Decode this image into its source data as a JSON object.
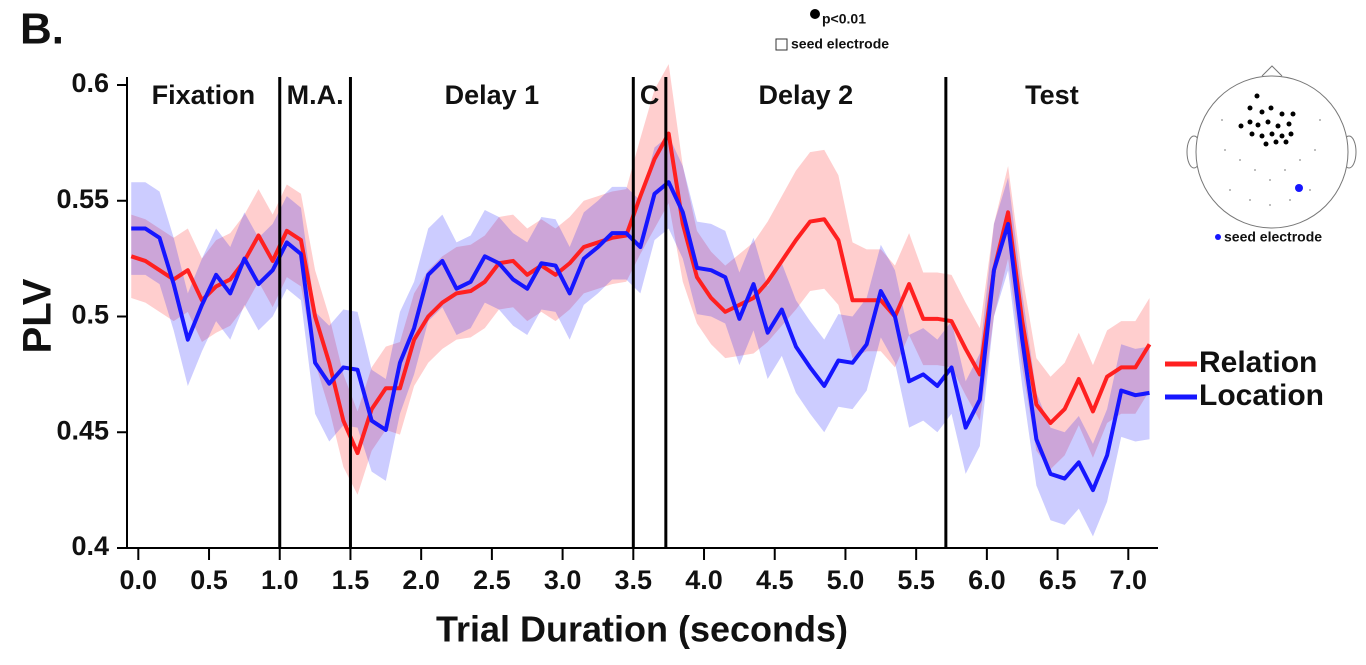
{
  "chart_data": {
    "type": "line",
    "panel_label": "B.",
    "x_label": "Trial Duration (seconds)",
    "y_label": "PLV",
    "xlim": [
      -0.08,
      7.21
    ],
    "ylim": [
      0.4,
      0.6
    ],
    "xticks": [
      {
        "value": 0,
        "label": "0.0"
      },
      0.5,
      {
        "value": 1,
        "label": "1.0"
      },
      1.5,
      {
        "value": 2,
        "label": "2.0"
      },
      2.5,
      {
        "value": 3,
        "label": "3.0"
      },
      3.5,
      {
        "value": 4,
        "label": "4.0"
      },
      4.5,
      {
        "value": 5,
        "label": "5.0"
      },
      5.5,
      {
        "value": 6,
        "label": "6.0"
      },
      6.5,
      {
        "value": 7,
        "label": "7.0"
      }
    ],
    "yticks": [
      0.4,
      0.45,
      0.5,
      0.55,
      0.6
    ],
    "grid": false,
    "vlines": [
      1.0,
      1.5,
      3.5,
      3.73,
      5.71
    ],
    "phases": [
      "Fixation",
      "M.A.",
      "Delay 1",
      "C",
      "Delay 2",
      "Test"
    ],
    "legend_position": "right",
    "annotations": {
      "significance": "p<0.01",
      "seed_box": "seed electrode",
      "seed_inset": "seed electrode"
    },
    "x": [
      -0.05,
      0.05,
      0.15,
      0.25,
      0.35,
      0.45,
      0.55,
      0.65,
      0.75,
      0.85,
      0.95,
      1.05,
      1.15,
      1.25,
      1.35,
      1.45,
      1.55,
      1.65,
      1.75,
      1.85,
      1.95,
      2.05,
      2.15,
      2.25,
      2.35,
      2.45,
      2.55,
      2.65,
      2.75,
      2.85,
      2.95,
      3.05,
      3.15,
      3.25,
      3.35,
      3.45,
      3.55,
      3.65,
      3.75,
      3.85,
      3.95,
      4.05,
      4.15,
      4.25,
      4.35,
      4.45,
      4.55,
      4.65,
      4.75,
      4.85,
      4.95,
      5.05,
      5.15,
      5.25,
      5.35,
      5.45,
      5.55,
      5.65,
      5.75,
      5.85,
      5.95,
      6.05,
      6.15,
      6.25,
      6.35,
      6.45,
      6.55,
      6.65,
      6.75,
      6.85,
      6.95,
      7.05,
      7.15
    ],
    "series": [
      {
        "name": "Relation",
        "color": "#ff2020",
        "values": [
          0.526,
          0.524,
          0.52,
          0.516,
          0.52,
          0.507,
          0.513,
          0.516,
          0.524,
          0.535,
          0.524,
          0.537,
          0.533,
          0.5,
          0.48,
          0.455,
          0.441,
          0.46,
          0.469,
          0.469,
          0.49,
          0.5,
          0.506,
          0.51,
          0.511,
          0.515,
          0.523,
          0.524,
          0.518,
          0.522,
          0.518,
          0.523,
          0.53,
          0.532,
          0.534,
          0.535,
          0.552,
          0.568,
          0.579,
          0.54,
          0.517,
          0.508,
          0.502,
          0.505,
          0.508,
          0.515,
          0.524,
          0.533,
          0.541,
          0.542,
          0.533,
          0.507,
          0.507,
          0.507,
          0.5,
          0.514,
          0.499,
          0.499,
          0.498,
          0.486,
          0.475,
          0.52,
          0.545,
          0.498,
          0.462,
          0.454,
          0.46,
          0.473,
          0.459,
          0.474,
          0.478,
          0.478,
          0.488
        ],
        "errors": [
          0.018,
          0.018,
          0.018,
          0.018,
          0.018,
          0.018,
          0.02,
          0.02,
          0.02,
          0.02,
          0.02,
          0.02,
          0.02,
          0.02,
          0.02,
          0.02,
          0.018,
          0.018,
          0.018,
          0.02,
          0.02,
          0.02,
          0.02,
          0.02,
          0.02,
          0.02,
          0.02,
          0.02,
          0.02,
          0.02,
          0.02,
          0.02,
          0.02,
          0.02,
          0.02,
          0.02,
          0.025,
          0.03,
          0.03,
          0.025,
          0.02,
          0.02,
          0.02,
          0.022,
          0.024,
          0.026,
          0.028,
          0.03,
          0.03,
          0.03,
          0.028,
          0.025,
          0.022,
          0.022,
          0.022,
          0.022,
          0.02,
          0.02,
          0.02,
          0.02,
          0.02,
          0.02,
          0.02,
          0.02,
          0.02,
          0.02,
          0.02,
          0.02,
          0.02,
          0.02,
          0.02,
          0.02,
          0.02
        ]
      },
      {
        "name": "Location",
        "color": "#1616ff",
        "values": [
          0.538,
          0.538,
          0.534,
          0.514,
          0.49,
          0.505,
          0.518,
          0.51,
          0.525,
          0.514,
          0.52,
          0.532,
          0.527,
          0.48,
          0.471,
          0.478,
          0.477,
          0.455,
          0.451,
          0.48,
          0.495,
          0.518,
          0.524,
          0.512,
          0.515,
          0.526,
          0.523,
          0.516,
          0.512,
          0.523,
          0.522,
          0.51,
          0.525,
          0.53,
          0.536,
          0.536,
          0.53,
          0.553,
          0.558,
          0.545,
          0.521,
          0.52,
          0.517,
          0.499,
          0.514,
          0.493,
          0.503,
          0.487,
          0.478,
          0.47,
          0.481,
          0.48,
          0.488,
          0.511,
          0.5,
          0.472,
          0.475,
          0.47,
          0.478,
          0.452,
          0.464,
          0.52,
          0.54,
          0.49,
          0.447,
          0.432,
          0.43,
          0.437,
          0.425,
          0.44,
          0.468,
          0.466,
          0.467
        ],
        "errors": [
          0.02,
          0.02,
          0.02,
          0.02,
          0.02,
          0.02,
          0.02,
          0.02,
          0.02,
          0.02,
          0.02,
          0.02,
          0.02,
          0.022,
          0.025,
          0.025,
          0.025,
          0.022,
          0.022,
          0.022,
          0.02,
          0.02,
          0.02,
          0.02,
          0.02,
          0.02,
          0.02,
          0.02,
          0.02,
          0.02,
          0.02,
          0.02,
          0.02,
          0.02,
          0.02,
          0.02,
          0.02,
          0.02,
          0.02,
          0.02,
          0.02,
          0.02,
          0.02,
          0.02,
          0.02,
          0.02,
          0.02,
          0.02,
          0.02,
          0.02,
          0.02,
          0.02,
          0.02,
          0.02,
          0.02,
          0.02,
          0.02,
          0.02,
          0.02,
          0.02,
          0.02,
          0.02,
          0.02,
          0.02,
          0.02,
          0.02,
          0.02,
          0.02,
          0.02,
          0.02,
          0.02,
          0.02,
          0.02
        ]
      }
    ]
  }
}
